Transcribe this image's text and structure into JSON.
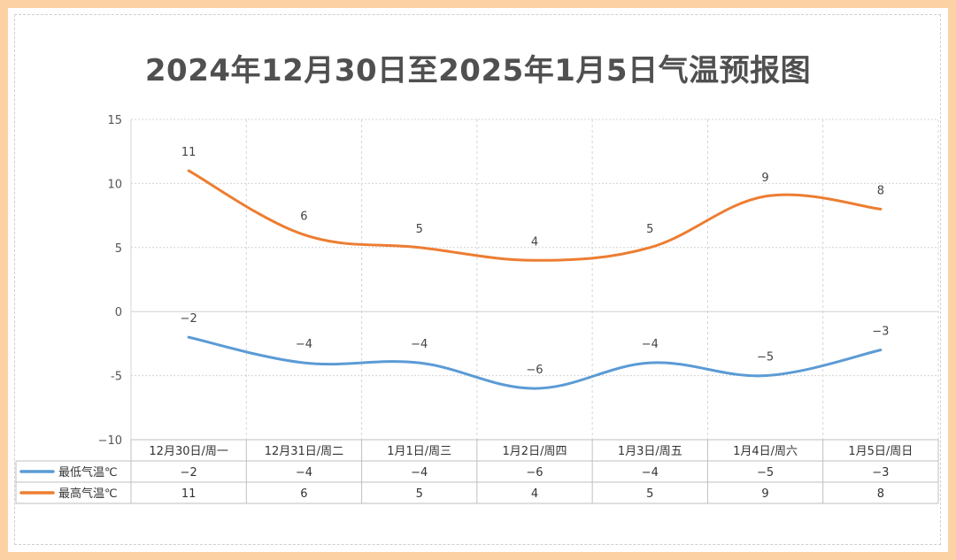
{
  "chart_data": {
    "type": "line",
    "title": "2024年12月30日至2025年1月5日气温预报图",
    "categories": [
      "12月30日/周一",
      "12月31日/周二",
      "1月1日/周三",
      "1月2日/周四",
      "1月3日/周五",
      "1月4日/周六",
      "1月5日/周日"
    ],
    "series": [
      {
        "name": "最低气温℃",
        "color": "#5b9bd5",
        "values": [
          -2,
          -4,
          -4,
          -6,
          -4,
          -5,
          -3
        ]
      },
      {
        "name": "最高气温℃",
        "color": "#ed7d31",
        "values": [
          11,
          6,
          5,
          4,
          5,
          9,
          8
        ]
      }
    ],
    "ylim": [
      -10,
      15
    ],
    "yticks": [
      15,
      10,
      5,
      0,
      -5,
      -10
    ],
    "ytick_labels": [
      "15",
      "10",
      "5",
      "0",
      "-5",
      "−10"
    ],
    "data_table": true,
    "grid": true,
    "smooth": true
  }
}
